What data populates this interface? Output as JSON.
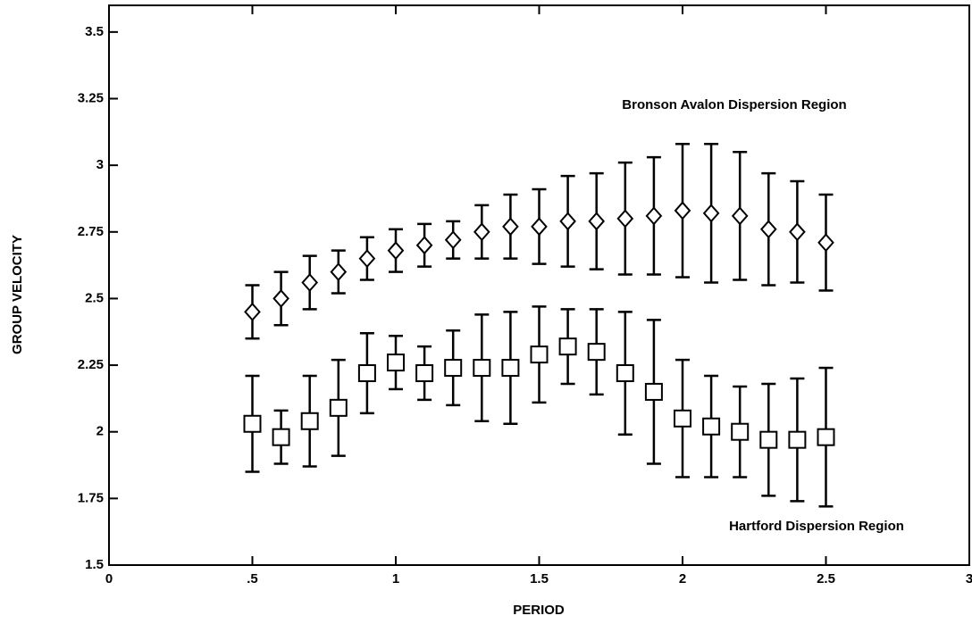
{
  "chart_data": {
    "type": "errorbar",
    "x_label": "PERIOD",
    "y_label": "GROUP VELOCITY",
    "x": [
      0.5,
      0.6,
      0.7,
      0.8,
      0.9,
      1.0,
      1.1,
      1.2,
      1.3,
      1.4,
      1.5,
      1.6,
      1.7,
      1.8,
      1.9,
      2.0,
      2.1,
      2.2,
      2.3,
      2.4,
      2.5
    ],
    "series": [
      {
        "name": "Bronson Avalon Dispersion Region",
        "marker": "diamond",
        "color": "#000000",
        "values": [
          2.45,
          2.5,
          2.56,
          2.6,
          2.65,
          2.68,
          2.7,
          2.72,
          2.75,
          2.77,
          2.77,
          2.79,
          2.79,
          2.8,
          2.81,
          2.83,
          2.82,
          2.81,
          2.76,
          2.75,
          2.71
        ],
        "errors": [
          0.1,
          0.1,
          0.1,
          0.08,
          0.08,
          0.08,
          0.08,
          0.07,
          0.1,
          0.12,
          0.14,
          0.17,
          0.18,
          0.21,
          0.22,
          0.25,
          0.26,
          0.24,
          0.21,
          0.19,
          0.18
        ]
      },
      {
        "name": "Hartford Dispersion Region",
        "marker": "square",
        "color": "#000000",
        "values": [
          2.03,
          1.98,
          2.04,
          2.09,
          2.22,
          2.26,
          2.22,
          2.24,
          2.24,
          2.24,
          2.29,
          2.32,
          2.3,
          2.22,
          2.15,
          2.05,
          2.02,
          2.0,
          1.97,
          1.97,
          1.98
        ],
        "errors": [
          0.18,
          0.1,
          0.17,
          0.18,
          0.15,
          0.1,
          0.1,
          0.14,
          0.2,
          0.21,
          0.18,
          0.14,
          0.16,
          0.23,
          0.27,
          0.22,
          0.19,
          0.17,
          0.21,
          0.23,
          0.26
        ]
      }
    ],
    "xlim": [
      0,
      3
    ],
    "xticks": [
      0,
      {
        "value": 0.5,
        "label": ".5"
      },
      1,
      1.5,
      2,
      2.5,
      3
    ],
    "ylim": [
      1.5,
      3.6
    ],
    "yticks": [
      1.5,
      1.75,
      2,
      2.25,
      2.5,
      2.75,
      3,
      3.25,
      3.5
    ],
    "grid": false
  }
}
